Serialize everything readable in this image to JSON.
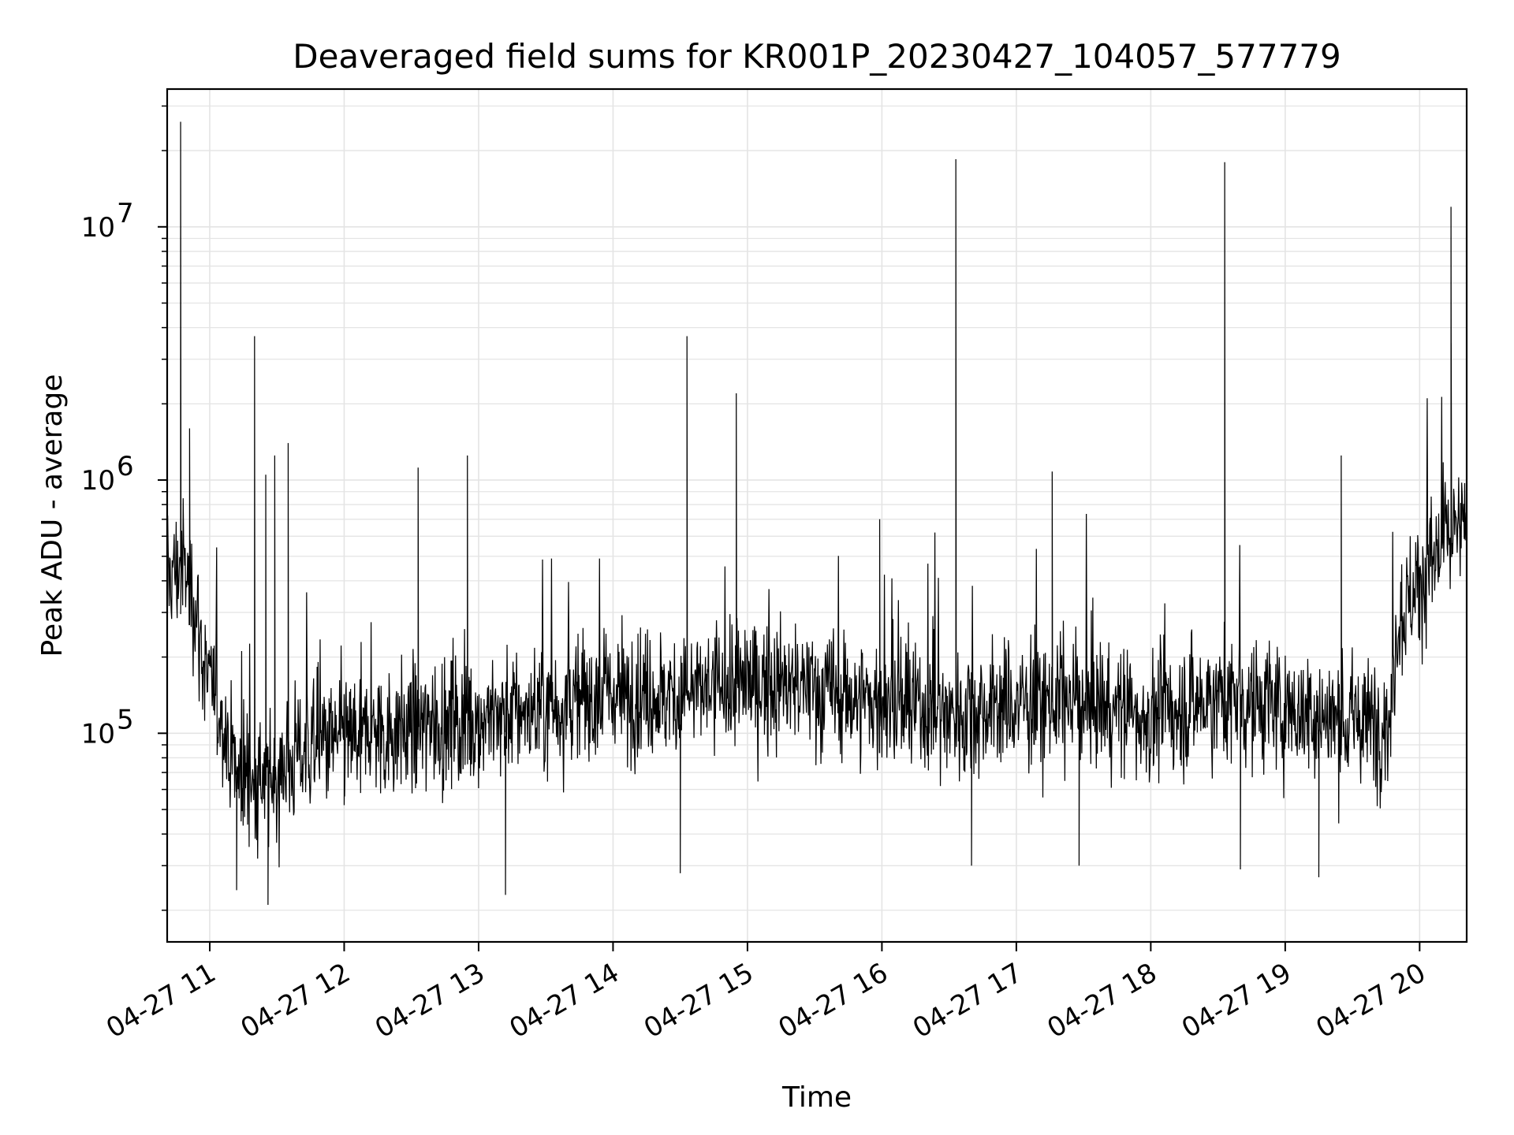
{
  "chart_data": {
    "type": "line",
    "title": "Deaveraged field sums for KR001P_20230427_104057_577779",
    "xlabel": "Time",
    "ylabel": "Peak ADU - average",
    "y_scale": "log",
    "ylim": [
      15000,
      35000000
    ],
    "xlim": [
      "2023-04-27 10:41",
      "2023-04-27 20:21"
    ],
    "grid": true,
    "line_color": "#000000",
    "x_ticks": [
      {
        "t": "2023-04-27 11:00",
        "label": "04-27 11"
      },
      {
        "t": "2023-04-27 12:00",
        "label": "04-27 12"
      },
      {
        "t": "2023-04-27 13:00",
        "label": "04-27 13"
      },
      {
        "t": "2023-04-27 14:00",
        "label": "04-27 14"
      },
      {
        "t": "2023-04-27 15:00",
        "label": "04-27 15"
      },
      {
        "t": "2023-04-27 16:00",
        "label": "04-27 16"
      },
      {
        "t": "2023-04-27 17:00",
        "label": "04-27 17"
      },
      {
        "t": "2023-04-27 18:00",
        "label": "04-27 18"
      },
      {
        "t": "2023-04-27 19:00",
        "label": "04-27 19"
      },
      {
        "t": "2023-04-27 20:00",
        "label": "04-27 20"
      }
    ],
    "y_ticks": [
      {
        "value": 100000,
        "base": "10",
        "exp": "5"
      },
      {
        "value": 1000000,
        "base": "10",
        "exp": "6"
      },
      {
        "value": 10000000,
        "base": "10",
        "exp": "7"
      }
    ],
    "series": [
      {
        "baseline": [
          [
            "2023-04-27 10:41",
            420000
          ],
          [
            "2023-04-27 10:48",
            450000
          ],
          [
            "2023-04-27 10:53",
            350000
          ],
          [
            "2023-04-27 10:58",
            170000
          ],
          [
            "2023-04-27 11:05",
            120000
          ],
          [
            "2023-04-27 11:12",
            70000
          ],
          [
            "2023-04-27 11:25",
            62000
          ],
          [
            "2023-04-27 11:40",
            85000
          ],
          [
            "2023-04-27 12:00",
            95000
          ],
          [
            "2023-04-27 12:30",
            105000
          ],
          [
            "2023-04-27 13:00",
            115000
          ],
          [
            "2023-04-27 13:30",
            125000
          ],
          [
            "2023-04-27 14:00",
            145000
          ],
          [
            "2023-04-27 14:30",
            140000
          ],
          [
            "2023-04-27 15:00",
            160000
          ],
          [
            "2023-04-27 15:30",
            150000
          ],
          [
            "2023-04-27 16:00",
            130000
          ],
          [
            "2023-04-27 16:30",
            120000
          ],
          [
            "2023-04-27 17:00",
            130000
          ],
          [
            "2023-04-27 17:30",
            135000
          ],
          [
            "2023-04-27 18:00",
            115000
          ],
          [
            "2023-04-27 18:30",
            140000
          ],
          [
            "2023-04-27 19:00",
            125000
          ],
          [
            "2023-04-27 19:30",
            110000
          ],
          [
            "2023-04-27 19:47",
            112000
          ],
          [
            "2023-04-27 19:50",
            280000
          ],
          [
            "2023-04-27 20:00",
            400000
          ],
          [
            "2023-04-27 20:10",
            550000
          ],
          [
            "2023-04-27 20:21",
            650000
          ]
        ],
        "spikes": [
          [
            "2023-04-27 10:47",
            26000000
          ],
          [
            "2023-04-27 10:47",
            4700000
          ],
          [
            "2023-04-27 10:51",
            1600000
          ],
          [
            "2023-04-27 11:20",
            3700000
          ],
          [
            "2023-04-27 11:25",
            1050000
          ],
          [
            "2023-04-27 11:29",
            1250000
          ],
          [
            "2023-04-27 11:35",
            1400000
          ],
          [
            "2023-04-27 12:33",
            1120000
          ],
          [
            "2023-04-27 12:55",
            1250000
          ],
          [
            "2023-04-27 14:33",
            3700000
          ],
          [
            "2023-04-27 14:55",
            2200000
          ],
          [
            "2023-04-27 15:59",
            700000
          ],
          [
            "2023-04-27 16:33",
            18500000
          ],
          [
            "2023-04-27 17:16",
            1080000
          ],
          [
            "2023-04-27 18:33",
            18000000
          ],
          [
            "2023-04-27 19:25",
            1250000
          ],
          [
            "2023-04-27 20:14",
            12000000
          ],
          [
            "2023-04-27 12:00",
            52000
          ],
          [
            "2023-04-27 11:26",
            21000
          ],
          [
            "2023-04-27 13:12",
            23000
          ],
          [
            "2023-04-27 11:12",
            24000
          ],
          [
            "2023-04-27 14:30",
            28000
          ],
          [
            "2023-04-27 16:40",
            30000
          ],
          [
            "2023-04-27 17:28",
            30000
          ],
          [
            "2023-04-27 19:15",
            27000
          ],
          [
            "2023-04-27 18:40",
            29000
          ]
        ]
      }
    ]
  }
}
